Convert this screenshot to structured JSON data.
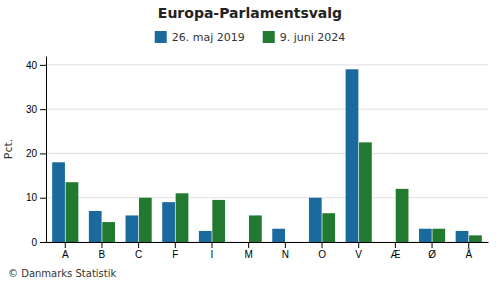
{
  "chart_data": {
    "type": "bar",
    "title": "Europa-Parlamentsvalg",
    "categories": [
      "A",
      "B",
      "C",
      "F",
      "I",
      "M",
      "N",
      "O",
      "V",
      "Æ",
      "Ø",
      "Å"
    ],
    "series": [
      {
        "name": "26. maj 2019",
        "color": "#1b6a9e",
        "values": [
          18.0,
          7.0,
          6.0,
          9.0,
          2.5,
          0.0,
          3.0,
          10.0,
          39.0,
          0.0,
          3.0,
          2.5
        ]
      },
      {
        "name": "9. juni 2024",
        "color": "#217a2f",
        "values": [
          13.5,
          4.5,
          10.0,
          11.0,
          9.5,
          6.0,
          0.0,
          6.5,
          22.5,
          12.0,
          3.0,
          1.5
        ]
      }
    ],
    "ylabel": "Pct.",
    "ylim": [
      0,
      42
    ],
    "yticks": [
      0,
      10,
      20,
      30,
      40
    ],
    "grid": true,
    "legend": "top",
    "annotations": [
      "© Danmarks Statistik"
    ]
  }
}
